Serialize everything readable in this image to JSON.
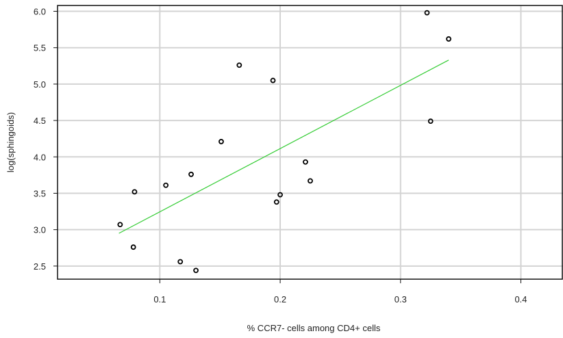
{
  "chart_data": {
    "type": "scatter",
    "title": "",
    "xlabel": "% CCR7- cells among CD4+ cells",
    "ylabel": "log(sphingoids)",
    "xlim": [
      0.015,
      0.435
    ],
    "ylim": [
      2.32,
      6.08
    ],
    "grid": true,
    "x_ticks": [
      0.1,
      0.2,
      0.3,
      0.4
    ],
    "x_tick_labels": [
      "0.1",
      "0.2",
      "0.3",
      "0.4"
    ],
    "y_ticks": [
      2.5,
      3.0,
      3.5,
      4.0,
      4.5,
      5.0,
      5.5,
      6.0
    ],
    "y_tick_labels": [
      "2.5",
      "3.0",
      "3.5",
      "4.0",
      "4.5",
      "5.0",
      "5.5",
      "6.0"
    ],
    "points": [
      {
        "x": 0.067,
        "y": 3.07
      },
      {
        "x": 0.078,
        "y": 2.76
      },
      {
        "x": 0.079,
        "y": 3.52
      },
      {
        "x": 0.105,
        "y": 3.61
      },
      {
        "x": 0.117,
        "y": 2.56
      },
      {
        "x": 0.126,
        "y": 3.76
      },
      {
        "x": 0.13,
        "y": 2.44
      },
      {
        "x": 0.151,
        "y": 4.21
      },
      {
        "x": 0.166,
        "y": 5.26
      },
      {
        "x": 0.194,
        "y": 5.05
      },
      {
        "x": 0.197,
        "y": 3.38
      },
      {
        "x": 0.2,
        "y": 3.48
      },
      {
        "x": 0.221,
        "y": 3.93
      },
      {
        "x": 0.225,
        "y": 3.67
      },
      {
        "x": 0.322,
        "y": 5.98
      },
      {
        "x": 0.325,
        "y": 4.49
      },
      {
        "x": 0.34,
        "y": 5.62
      }
    ],
    "fit_line": {
      "x": [
        0.066,
        0.34
      ],
      "y": [
        2.95,
        5.33
      ],
      "color": "#33cc33"
    },
    "point_color": "#000000",
    "grid_color": "#d3d3d3"
  }
}
